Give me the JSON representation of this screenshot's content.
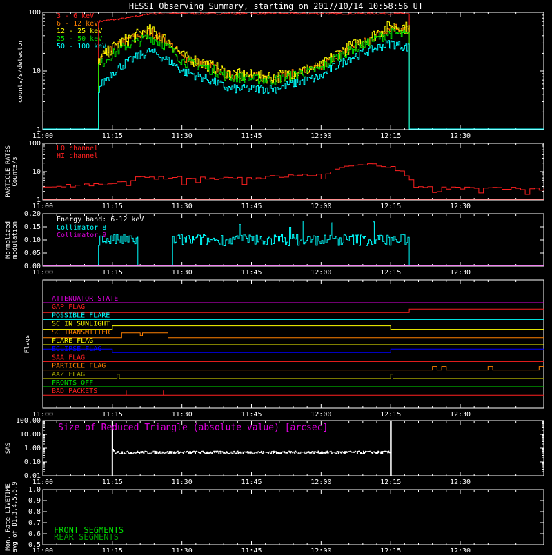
{
  "title": "HESSI Observing Summary, starting on 2017/10/14 10:58:56 UT",
  "time_ticks": [
    "11:00",
    "11:15",
    "11:30",
    "11:45",
    "12:00",
    "12:15",
    "12:30"
  ],
  "colors": {
    "axis": "#ffffff",
    "red": "#ff2020",
    "orange": "#ff8000",
    "yellow": "#ffff00",
    "green": "#00e000",
    "cyan": "#00ffff",
    "magenta": "#e000e0",
    "blue": "#0000ff",
    "olive": "#a0a000",
    "darkgreen": "#00a000"
  },
  "chart_data": [
    {
      "id": "rates",
      "type": "line",
      "ylabel": "counts/s/detector",
      "yscale": "log",
      "ylim": [
        1,
        100
      ],
      "ytick_labels": [
        "1",
        "10",
        "100"
      ],
      "xlim_minutes": [
        0,
        108
      ],
      "series": [
        {
          "name": "3 - 6 keV",
          "color": "red"
        },
        {
          "name": "6 - 12 keV",
          "color": "orange"
        },
        {
          "name": "12 - 25 keV",
          "color": "yellow"
        },
        {
          "name": "25 - 50 keV",
          "color": "green"
        },
        {
          "name": "50 - 100 keV",
          "color": "cyan"
        }
      ],
      "key_points": {
        "times": [
          "11:12",
          "11:18",
          "11:23",
          "11:30",
          "11:40",
          "11:50",
          "12:00",
          "12:10",
          "12:15",
          "12:19"
        ],
        "3 - 6 keV": [
          70,
          80,
          95,
          95,
          95,
          95,
          95,
          95,
          95,
          95
        ],
        "12 - 25 keV": [
          15,
          35,
          50,
          18,
          9,
          8,
          12,
          35,
          60,
          55
        ],
        "25 - 50 keV": [
          12,
          27,
          38,
          15,
          8,
          7,
          11,
          30,
          45,
          40
        ],
        "50 - 100 keV": [
          5,
          14,
          22,
          10,
          5,
          5,
          8,
          22,
          30,
          25
        ]
      }
    },
    {
      "id": "particle",
      "type": "line",
      "ylabel_lines": [
        "PARTICLE RATES",
        "Counts/s"
      ],
      "yscale": "log",
      "ylim": [
        1,
        100
      ],
      "ytick_labels": [
        "1",
        "10",
        "100"
      ],
      "series": [
        {
          "name": "LO channel",
          "color": "red"
        },
        {
          "name": "HI channel",
          "color": "red"
        }
      ],
      "key_points": {
        "times": [
          "11:00",
          "11:15",
          "11:20",
          "11:45",
          "12:00",
          "12:10",
          "12:15",
          "12:20",
          "12:35"
        ],
        "values": [
          3,
          3.5,
          6,
          6,
          8,
          20,
          14,
          3,
          2.5
        ]
      }
    },
    {
      "id": "modulation",
      "type": "line",
      "ylabel_lines": [
        "Normalized",
        "modulation"
      ],
      "ylim": [
        0,
        0.2
      ],
      "ytick_labels": [
        "0.00",
        "0.05",
        "0.10",
        "0.15",
        "0.20"
      ],
      "annotation": "Energy band: 6-12 keV",
      "series": [
        {
          "name": "Collimator 8",
          "color": "cyan"
        },
        {
          "name": "Collimator 9",
          "color": "magenta"
        }
      ],
      "segments": [
        [
          "11:12",
          "11:20:30"
        ],
        [
          "11:28",
          "12:19"
        ]
      ],
      "typical_value": 0.1
    },
    {
      "id": "flags",
      "type": "line",
      "ylabel": "Flags",
      "series": [
        {
          "name": "ATTENUATOR STATE",
          "color": "magenta"
        },
        {
          "name": "GAP FLAG",
          "color": "red"
        },
        {
          "name": "POSSIBLE FLARE",
          "color": "cyan"
        },
        {
          "name": "SC IN SUNLIGHT",
          "color": "yellow"
        },
        {
          "name": "SC TRANSMITTER",
          "color": "orange"
        },
        {
          "name": "FLARE FLAG",
          "color": "yellow"
        },
        {
          "name": "ECLIPSE FLAG",
          "color": "blue"
        },
        {
          "name": "SAA FLAG",
          "color": "red"
        },
        {
          "name": "PARTICLE FLAG",
          "color": "orange"
        },
        {
          "name": "AAZ FLAG",
          "color": "olive"
        },
        {
          "name": "FRONTS OFF",
          "color": "green"
        },
        {
          "name": "BAD PACKETS",
          "color": "red"
        }
      ]
    },
    {
      "id": "sas",
      "type": "line",
      "ylabel": "SAS",
      "yscale": "log",
      "ylim": [
        0.01,
        100
      ],
      "ytick_labels": [
        "0.01",
        "0.10",
        "1.00",
        "10.00",
        "100.00"
      ],
      "annotation": "Size of Reduced Triangle (absolute value) [arcsec]",
      "segment": [
        "11:15",
        "12:15"
      ],
      "typical_value": 0.5
    },
    {
      "id": "livetime",
      "type": "line",
      "ylabel_lines": [
        "Mon. Rate LIVETIME",
        "avg of D1,3,4,5,6,9"
      ],
      "ylim": [
        0.5,
        1.0
      ],
      "ytick_labels": [
        "0.5",
        "0.6",
        "0.7",
        "0.8",
        "0.9",
        "1.0"
      ],
      "series": [
        {
          "name": "FRONT SEGMENTS",
          "color": "green"
        },
        {
          "name": "REAR SEGMENTS",
          "color": "darkgreen"
        }
      ]
    }
  ]
}
